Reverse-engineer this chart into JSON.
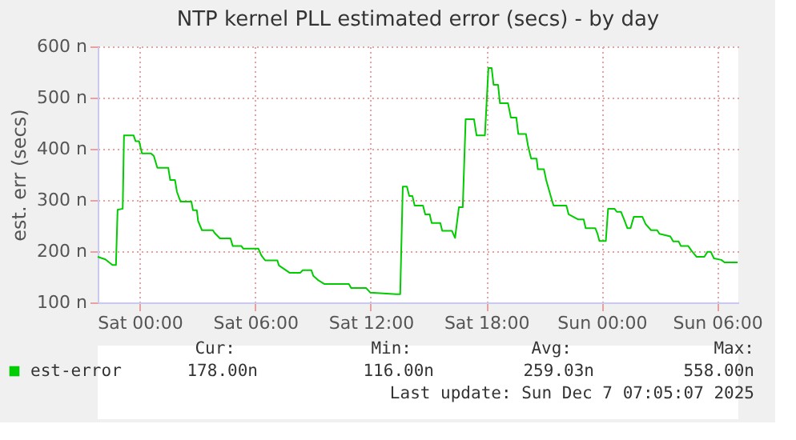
{
  "chart_data": {
    "type": "line",
    "title": "NTP kernel PLL estimated error (secs) - by day",
    "ylabel": "est. err (secs)",
    "xlim": [
      "2025-12-05T21:49",
      "2025-12-07T07:06"
    ],
    "ylim": [
      100,
      600
    ],
    "xticks": [
      {
        "value": "2025-12-06T00:00",
        "label": "Sat 00:00"
      },
      {
        "value": "2025-12-06T06:00",
        "label": "Sat 06:00"
      },
      {
        "value": "2025-12-06T12:00",
        "label": "Sat 12:00"
      },
      {
        "value": "2025-12-06T18:00",
        "label": "Sat 18:00"
      },
      {
        "value": "2025-12-07T00:00",
        "label": "Sun 00:00"
      },
      {
        "value": "2025-12-07T06:00",
        "label": "Sun 06:00"
      }
    ],
    "yticks": [
      {
        "value": 100,
        "label": "100 n"
      },
      {
        "value": 200,
        "label": "200 n"
      },
      {
        "value": 300,
        "label": "300 n"
      },
      {
        "value": 400,
        "label": "400 n"
      },
      {
        "value": 500,
        "label": "500 n"
      },
      {
        "value": 600,
        "label": "600 n"
      }
    ],
    "grid": true,
    "legend": "bottom",
    "series": [
      {
        "name": "est-error",
        "color": "#00cc00",
        "x": [
          "2025-12-05T21:49",
          "2025-12-05T22:13",
          "2025-12-05T22:35",
          "2025-12-05T22:46",
          "2025-12-05T22:51",
          "2025-12-05T23:07",
          "2025-12-05T23:11",
          "2025-12-05T23:41",
          "2025-12-05T23:47",
          "2025-12-05T23:58",
          "2025-12-06T00:07",
          "2025-12-06T00:35",
          "2025-12-06T00:44",
          "2025-12-06T00:55",
          "2025-12-06T01:29",
          "2025-12-06T01:35",
          "2025-12-06T01:50",
          "2025-12-06T01:56",
          "2025-12-06T02:07",
          "2025-12-06T02:41",
          "2025-12-06T02:46",
          "2025-12-06T02:58",
          "2025-12-06T03:02",
          "2025-12-06T03:14",
          "2025-12-06T03:48",
          "2025-12-06T03:53",
          "2025-12-06T04:10",
          "2025-12-06T04:43",
          "2025-12-06T04:50",
          "2025-12-06T05:17",
          "2025-12-06T05:23",
          "2025-12-06T06:10",
          "2025-12-06T06:19",
          "2025-12-06T06:31",
          "2025-12-06T07:09",
          "2025-12-06T07:14",
          "2025-12-06T07:47",
          "2025-12-06T08:21",
          "2025-12-06T08:28",
          "2025-12-06T08:55",
          "2025-12-06T09:01",
          "2025-12-06T09:15",
          "2025-12-06T09:35",
          "2025-12-06T10:52",
          "2025-12-06T10:59",
          "2025-12-06T11:46",
          "2025-12-06T11:59",
          "2025-12-06T13:20",
          "2025-12-06T13:32",
          "2025-12-06T13:40",
          "2025-12-06T13:53",
          "2025-12-06T14:00",
          "2025-12-06T14:10",
          "2025-12-06T14:17",
          "2025-12-06T14:43",
          "2025-12-06T14:50",
          "2025-12-06T15:04",
          "2025-12-06T15:10",
          "2025-12-06T15:37",
          "2025-12-06T15:43",
          "2025-12-06T16:13",
          "2025-12-06T16:23",
          "2025-12-06T16:35",
          "2025-12-06T16:47",
          "2025-12-06T16:56",
          "2025-12-06T17:22",
          "2025-12-06T17:30",
          "2025-12-06T17:56",
          "2025-12-06T18:07",
          "2025-12-06T18:17",
          "2025-12-06T18:23",
          "2025-12-06T18:37",
          "2025-12-06T18:43",
          "2025-12-06T19:08",
          "2025-12-06T19:17",
          "2025-12-06T19:34",
          "2025-12-06T19:40",
          "2025-12-06T20:04",
          "2025-12-06T20:10",
          "2025-12-06T20:20",
          "2025-12-06T20:37",
          "2025-12-06T20:41",
          "2025-12-06T21:00",
          "2025-12-06T21:07",
          "2025-12-06T21:20",
          "2025-12-06T21:30",
          "2025-12-06T22:10",
          "2025-12-06T22:17",
          "2025-12-06T22:47",
          "2025-12-06T23:04",
          "2025-12-06T23:10",
          "2025-12-06T23:40",
          "2025-12-06T23:47",
          "2025-12-06T23:53",
          "2025-12-07T00:13",
          "2025-12-07T00:20",
          "2025-12-07T00:40",
          "2025-12-07T00:47",
          "2025-12-07T01:00",
          "2025-12-07T01:10",
          "2025-12-07T01:20",
          "2025-12-07T01:30",
          "2025-12-07T01:40",
          "2025-12-07T02:07",
          "2025-12-07T02:17",
          "2025-12-07T02:34",
          "2025-12-07T02:53",
          "2025-12-07T03:00",
          "2025-12-07T03:34",
          "2025-12-07T03:43",
          "2025-12-07T04:00",
          "2025-12-07T04:07",
          "2025-12-07T04:30",
          "2025-12-07T04:40",
          "2025-12-07T04:56",
          "2025-12-07T05:20",
          "2025-12-07T05:30",
          "2025-12-07T05:40",
          "2025-12-07T05:50",
          "2025-12-07T06:13",
          "2025-12-07T06:23",
          "2025-12-07T07:04"
        ],
        "values": [
          189,
          184,
          173,
          173,
          281,
          283,
          426,
          426,
          415,
          415,
          391,
          391,
          386,
          363,
          363,
          339,
          339,
          316,
          297,
          297,
          280,
          280,
          259,
          241,
          241,
          236,
          225,
          225,
          210,
          210,
          205,
          205,
          192,
          182,
          182,
          172,
          158,
          158,
          163,
          163,
          152,
          144,
          136,
          136,
          128,
          128,
          119,
          116,
          116,
          326,
          326,
          308,
          308,
          289,
          289,
          272,
          272,
          255,
          255,
          240,
          240,
          226,
          286,
          286,
          458,
          458,
          426,
          426,
          558,
          558,
          525,
          525,
          489,
          489,
          461,
          461,
          429,
          429,
          407,
          381,
          381,
          360,
          360,
          339,
          310,
          289,
          289,
          272,
          262,
          262,
          245,
          245,
          234,
          220,
          220,
          283,
          283,
          277,
          277,
          262,
          245,
          245,
          267,
          267,
          253,
          241,
          241,
          234,
          229,
          219,
          219,
          210,
          210,
          201,
          189,
          189,
          199,
          199,
          186,
          183,
          178,
          178
        ]
      }
    ],
    "annotations": [
      "Cur:",
      "178.00n",
      "Min:",
      "116.00n",
      "Avg:",
      "259.03n",
      "Max:",
      "558.00n",
      "Last update: Sun Dec  7 07:05:07 2025"
    ]
  }
}
